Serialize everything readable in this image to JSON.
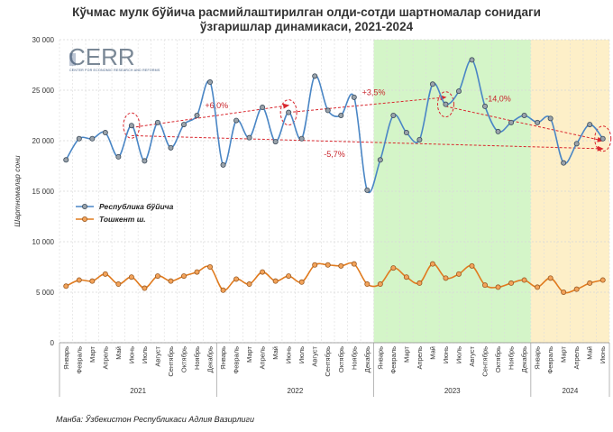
{
  "chart_data": {
    "type": "line",
    "title_line1": "Кўчмас мулк бўйича расмийлаштирилган олди-сотди шартномалар сонидаги",
    "title_line2": "ўзгаришлар динамикаси, 2021-2024",
    "ylabel": "Шартномалар сони",
    "ylim": [
      0,
      30000
    ],
    "yticks": [
      "0",
      "5 000",
      "10 000",
      "15 000",
      "20 000",
      "25 000",
      "30 000"
    ],
    "x": [
      "Январь",
      "Февраль",
      "Март",
      "Апрель",
      "Май",
      "Июнь",
      "Июль",
      "Август",
      "Сентябрь",
      "Октябрь",
      "Ноябрь",
      "Декабрь",
      "Январь",
      "Февраль",
      "Март",
      "Апрель",
      "Май",
      "Июнь",
      "Июль",
      "Август",
      "Сентябрь",
      "Октябрь",
      "Ноябрь",
      "Декабрь",
      "Январь",
      "Февраль",
      "Март",
      "Апрель",
      "Май",
      "Июнь",
      "Июль",
      "Август",
      "Сентябрь",
      "Октябрь",
      "Ноябрь",
      "Декабрь",
      "Январь",
      "Февраль",
      "Март",
      "Апрель",
      "Май",
      "Июнь"
    ],
    "years": [
      {
        "label": "2021",
        "start": 0,
        "end": 11
      },
      {
        "label": "2022",
        "start": 12,
        "end": 23
      },
      {
        "label": "2023",
        "start": 24,
        "end": 35
      },
      {
        "label": "2024",
        "start": 36,
        "end": 41
      }
    ],
    "series": [
      {
        "name": "Республика бўйича",
        "color": "#4a86c5",
        "values": [
          18100,
          20200,
          20200,
          20800,
          18400,
          21500,
          18000,
          21800,
          19300,
          21600,
          22500,
          25800,
          17600,
          22000,
          20300,
          23300,
          19900,
          22800,
          20200,
          26400,
          23000,
          22500,
          24300,
          15100,
          18100,
          22500,
          20800,
          20100,
          25600,
          23600,
          24900,
          28000,
          23400,
          20900,
          21800,
          22500,
          21800,
          22200,
          17800,
          19700,
          21600,
          20200
        ]
      },
      {
        "name": "Тошкент ш.",
        "color": "#e07b1f",
        "values": [
          5600,
          6200,
          6100,
          6800,
          5800,
          6500,
          5400,
          6600,
          6100,
          6600,
          7000,
          7500,
          5200,
          6300,
          5800,
          7000,
          6100,
          6600,
          6000,
          7700,
          7700,
          7600,
          7800,
          5800,
          5800,
          7400,
          6500,
          5900,
          7800,
          6400,
          6800,
          7600,
          5700,
          5500,
          5900,
          6200,
          5500,
          6400,
          5000,
          5300,
          5900,
          6200
        ]
      }
    ],
    "annotations": [
      "+6,0%",
      "-5,7%",
      "+3,5%",
      "-14,0%"
    ],
    "legend_position": "left-middle",
    "logo_text": "CERR",
    "logo_subtitle": "CENTER FOR ECONOMIC RESEARCH AND REFORMS"
  },
  "footer": {
    "source": "Манба: Ўзбекистон Республикаси Адлия Вазирлиги"
  },
  "colors": {
    "green_band": "#d4f5c8",
    "yellow_band": "#fdefc8",
    "arrow": "#d9272e",
    "annot": "#c8242b"
  }
}
